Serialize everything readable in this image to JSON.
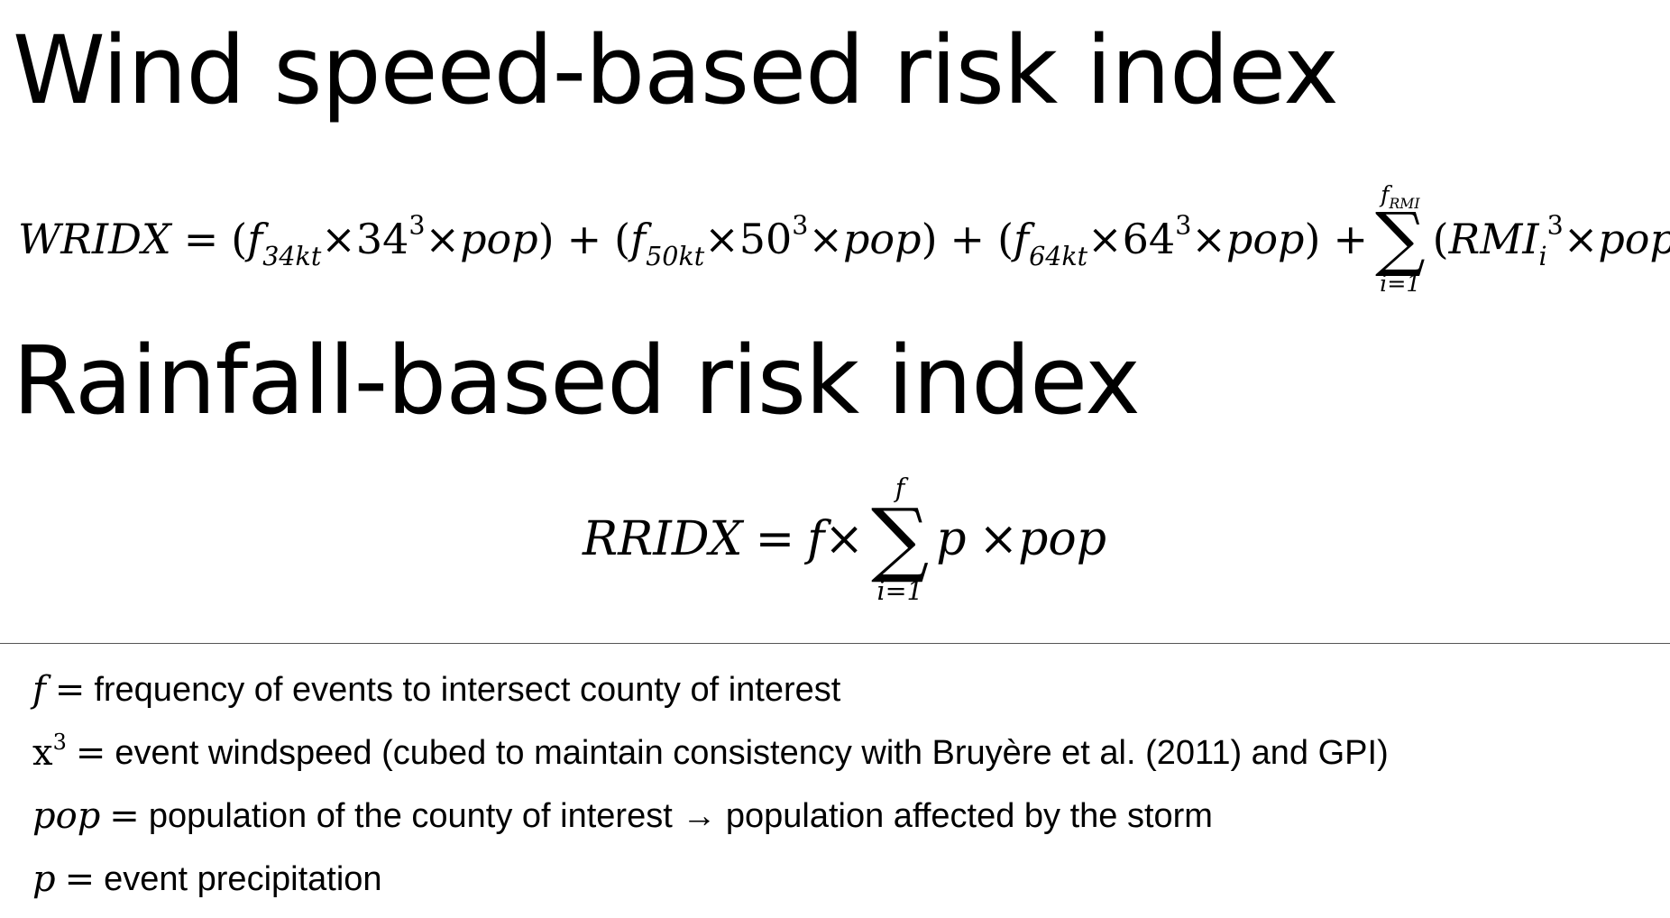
{
  "headings": {
    "wind": "Wind speed-based risk index",
    "rain": "Rainfall-based risk index"
  },
  "wind_formula": {
    "lhs": "WRIDX",
    "equals": "=",
    "terms": [
      {
        "f": "f",
        "sub": "34kt",
        "times1": "×",
        "speed": "34",
        "exp": "3",
        "times2": "×",
        "pop": "pop"
      },
      {
        "f": "f",
        "sub": "50kt",
        "times1": "×",
        "speed": "50",
        "exp": "3",
        "times2": "×",
        "pop": "pop"
      },
      {
        "f": "f",
        "sub": "64kt",
        "times1": "×",
        "speed": "64",
        "exp": "3",
        "times2": "×",
        "pop": "pop"
      }
    ],
    "plus": "+",
    "sum": {
      "upper_f": "f",
      "upper_sub": "RMI",
      "symbol": "∑",
      "lower": "i=1"
    },
    "summand": {
      "var": "RMI",
      "sub": "i",
      "exp": "3",
      "times": "×",
      "pop": "pop"
    }
  },
  "rain_formula": {
    "lhs": "RRIDX",
    "equals": "=",
    "f": "f",
    "times1": "×",
    "sum": {
      "upper": "f",
      "symbol": "∑",
      "lower": "i=1"
    },
    "p": "p",
    "times2": "×",
    "pop": "pop"
  },
  "definitions": [
    {
      "symbol": "f",
      "exp": "",
      "equals": "=",
      "text": "frequency of events to intersect county of interest"
    },
    {
      "symbol": "x",
      "exp": "3",
      "equals": "=",
      "text": "event windspeed (cubed to maintain consistency with Bruyère et al. (2011) and GPI)"
    },
    {
      "symbol": "pop",
      "exp": "",
      "equals": "=",
      "text": "population of the county of interest → population affected by the storm"
    },
    {
      "symbol": "p",
      "exp": "",
      "equals": "=",
      "text": "event precipitation"
    }
  ]
}
